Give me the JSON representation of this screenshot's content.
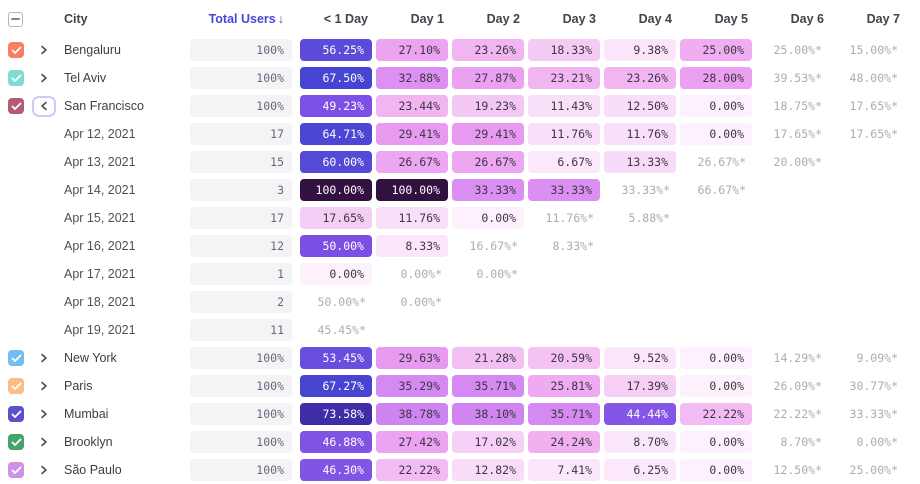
{
  "header": {
    "columns": [
      "City",
      "Total Users",
      "< 1 Day",
      "Day 1",
      "Day 2",
      "Day 3",
      "Day 4",
      "Day 5",
      "Day 6",
      "Day 7"
    ],
    "sort_column": "Total Users",
    "sort_arrow": "↓",
    "select_all_state": "indeterminate"
  },
  "accent_color": "#4c46d6",
  "heat_white_text_min": 44,
  "heat_scale": [
    {
      "value": 0,
      "color": "#fdf1fd"
    },
    {
      "value": 10,
      "color": "#fae4fa"
    },
    {
      "value": 15,
      "color": "#f7d6f7"
    },
    {
      "value": 20,
      "color": "#f4c6f4"
    },
    {
      "value": 25,
      "color": "#f0adf1"
    },
    {
      "value": 30,
      "color": "#e798f1"
    },
    {
      "value": 35,
      "color": "#d68af3"
    },
    {
      "value": 40,
      "color": "#cc82f0"
    },
    {
      "value": 44,
      "color": "#8557e6"
    },
    {
      "value": 50,
      "color": "#7b4fe4"
    },
    {
      "value": 56,
      "color": "#5a4bd9"
    },
    {
      "value": 64,
      "color": "#4f47d6"
    },
    {
      "value": 68,
      "color": "#4543d1"
    },
    {
      "value": 74,
      "color": "#3e2ba4"
    },
    {
      "value": 100,
      "color": "#321040"
    }
  ],
  "rows": [
    {
      "type": "city",
      "label": "Bengaluru",
      "checkbox_color": "#fa7e5f",
      "expanded": false,
      "total": "100%",
      "cells": [
        {
          "text": "56.25%",
          "value": 56.25,
          "partial": false
        },
        {
          "text": "27.10%",
          "value": 27.1,
          "partial": false
        },
        {
          "text": "23.26%",
          "value": 23.26,
          "partial": false
        },
        {
          "text": "18.33%",
          "value": 18.33,
          "partial": false
        },
        {
          "text": "9.38%",
          "value": 9.38,
          "partial": false
        },
        {
          "text": "25.00%",
          "value": 25.0,
          "partial": false
        },
        {
          "text": "25.00%*",
          "value": 25.0,
          "partial": true
        },
        {
          "text": "15.00%*",
          "value": 15.0,
          "partial": true
        }
      ]
    },
    {
      "type": "city",
      "label": "Tel Aviv",
      "checkbox_color": "#7fdcd1",
      "expanded": false,
      "total": "100%",
      "cells": [
        {
          "text": "67.50%",
          "value": 67.5,
          "partial": false
        },
        {
          "text": "32.88%",
          "value": 32.88,
          "partial": false
        },
        {
          "text": "27.87%",
          "value": 27.87,
          "partial": false
        },
        {
          "text": "23.21%",
          "value": 23.21,
          "partial": false
        },
        {
          "text": "23.26%",
          "value": 23.26,
          "partial": false
        },
        {
          "text": "28.00%",
          "value": 28.0,
          "partial": false
        },
        {
          "text": "39.53%*",
          "value": 39.53,
          "partial": true
        },
        {
          "text": "48.00%*",
          "value": 48.0,
          "partial": true
        }
      ]
    },
    {
      "type": "city",
      "label": "San Francisco",
      "checkbox_color": "#b25c74",
      "expanded": true,
      "total": "100%",
      "cells": [
        {
          "text": "49.23%",
          "value": 49.23,
          "partial": false
        },
        {
          "text": "23.44%",
          "value": 23.44,
          "partial": false
        },
        {
          "text": "19.23%",
          "value": 19.23,
          "partial": false
        },
        {
          "text": "11.43%",
          "value": 11.43,
          "partial": false
        },
        {
          "text": "12.50%",
          "value": 12.5,
          "partial": false
        },
        {
          "text": "0.00%",
          "value": 0.0,
          "partial": false
        },
        {
          "text": "18.75%*",
          "value": 18.75,
          "partial": true
        },
        {
          "text": "17.65%*",
          "value": 17.65,
          "partial": true
        }
      ]
    },
    {
      "type": "date",
      "label": "Apr 12, 2021",
      "total": "17",
      "cells": [
        {
          "text": "64.71%",
          "value": 64.71,
          "partial": false
        },
        {
          "text": "29.41%",
          "value": 29.41,
          "partial": false
        },
        {
          "text": "29.41%",
          "value": 29.41,
          "partial": false
        },
        {
          "text": "11.76%",
          "value": 11.76,
          "partial": false
        },
        {
          "text": "11.76%",
          "value": 11.76,
          "partial": false
        },
        {
          "text": "0.00%",
          "value": 0.0,
          "partial": false
        },
        {
          "text": "17.65%*",
          "value": 17.65,
          "partial": true
        },
        {
          "text": "17.65%*",
          "value": 17.65,
          "partial": true
        }
      ]
    },
    {
      "type": "date",
      "label": "Apr 13, 2021",
      "total": "15",
      "cells": [
        {
          "text": "60.00%",
          "value": 60.0,
          "partial": false
        },
        {
          "text": "26.67%",
          "value": 26.67,
          "partial": false
        },
        {
          "text": "26.67%",
          "value": 26.67,
          "partial": false
        },
        {
          "text": "6.67%",
          "value": 6.67,
          "partial": false
        },
        {
          "text": "13.33%",
          "value": 13.33,
          "partial": false
        },
        {
          "text": "26.67%*",
          "value": 26.67,
          "partial": true
        },
        {
          "text": "20.00%*",
          "value": 20.0,
          "partial": true
        },
        null
      ]
    },
    {
      "type": "date",
      "label": "Apr 14, 2021",
      "total": "3",
      "cells": [
        {
          "text": "100.00%",
          "value": 100.0,
          "partial": false
        },
        {
          "text": "100.00%",
          "value": 100.0,
          "partial": false
        },
        {
          "text": "33.33%",
          "value": 33.33,
          "partial": false
        },
        {
          "text": "33.33%",
          "value": 33.33,
          "partial": false
        },
        {
          "text": "33.33%*",
          "value": 33.33,
          "partial": true
        },
        {
          "text": "66.67%*",
          "value": 66.67,
          "partial": true
        },
        null,
        null
      ]
    },
    {
      "type": "date",
      "label": "Apr 15, 2021",
      "total": "17",
      "cells": [
        {
          "text": "17.65%",
          "value": 17.65,
          "partial": false
        },
        {
          "text": "11.76%",
          "value": 11.76,
          "partial": false
        },
        {
          "text": "0.00%",
          "value": 0.0,
          "partial": false
        },
        {
          "text": "11.76%*",
          "value": 11.76,
          "partial": true
        },
        {
          "text": "5.88%*",
          "value": 5.88,
          "partial": true
        },
        null,
        null,
        null
      ]
    },
    {
      "type": "date",
      "label": "Apr 16, 2021",
      "total": "12",
      "cells": [
        {
          "text": "50.00%",
          "value": 50.0,
          "partial": false
        },
        {
          "text": "8.33%",
          "value": 8.33,
          "partial": false
        },
        {
          "text": "16.67%*",
          "value": 16.67,
          "partial": true
        },
        {
          "text": "8.33%*",
          "value": 8.33,
          "partial": true
        },
        null,
        null,
        null,
        null
      ]
    },
    {
      "type": "date",
      "label": "Apr 17, 2021",
      "total": "1",
      "cells": [
        {
          "text": "0.00%",
          "value": 0.0,
          "partial": false
        },
        {
          "text": "0.00%*",
          "value": 0.0,
          "partial": true
        },
        {
          "text": "0.00%*",
          "value": 0.0,
          "partial": true
        },
        null,
        null,
        null,
        null,
        null
      ]
    },
    {
      "type": "date",
      "label": "Apr 18, 2021",
      "total": "2",
      "cells": [
        {
          "text": "50.00%*",
          "value": 50.0,
          "partial": true
        },
        {
          "text": "0.00%*",
          "value": 0.0,
          "partial": true
        },
        null,
        null,
        null,
        null,
        null,
        null
      ]
    },
    {
      "type": "date",
      "label": "Apr 19, 2021",
      "total": "11",
      "cells": [
        {
          "text": "45.45%*",
          "value": 45.45,
          "partial": true
        },
        null,
        null,
        null,
        null,
        null,
        null,
        null
      ]
    },
    {
      "type": "city",
      "label": "New York",
      "checkbox_color": "#72bdf2",
      "expanded": false,
      "total": "100%",
      "cells": [
        {
          "text": "53.45%",
          "value": 53.45,
          "partial": false
        },
        {
          "text": "29.63%",
          "value": 29.63,
          "partial": false
        },
        {
          "text": "21.28%",
          "value": 21.28,
          "partial": false
        },
        {
          "text": "20.59%",
          "value": 20.59,
          "partial": false
        },
        {
          "text": "9.52%",
          "value": 9.52,
          "partial": false
        },
        {
          "text": "0.00%",
          "value": 0.0,
          "partial": false
        },
        {
          "text": "14.29%*",
          "value": 14.29,
          "partial": true
        },
        {
          "text": "9.09%*",
          "value": 9.09,
          "partial": true
        }
      ]
    },
    {
      "type": "city",
      "label": "Paris",
      "checkbox_color": "#fcbc87",
      "expanded": false,
      "total": "100%",
      "cells": [
        {
          "text": "67.27%",
          "value": 67.27,
          "partial": false
        },
        {
          "text": "35.29%",
          "value": 35.29,
          "partial": false
        },
        {
          "text": "35.71%",
          "value": 35.71,
          "partial": false
        },
        {
          "text": "25.81%",
          "value": 25.81,
          "partial": false
        },
        {
          "text": "17.39%",
          "value": 17.39,
          "partial": false
        },
        {
          "text": "0.00%",
          "value": 0.0,
          "partial": false
        },
        {
          "text": "26.09%*",
          "value": 26.09,
          "partial": true
        },
        {
          "text": "30.77%*",
          "value": 30.77,
          "partial": true
        }
      ]
    },
    {
      "type": "city",
      "label": "Mumbai",
      "checkbox_color": "#5a50cc",
      "expanded": false,
      "total": "100%",
      "cells": [
        {
          "text": "73.58%",
          "value": 73.58,
          "partial": false
        },
        {
          "text": "38.78%",
          "value": 38.78,
          "partial": false
        },
        {
          "text": "38.10%",
          "value": 38.1,
          "partial": false
        },
        {
          "text": "35.71%",
          "value": 35.71,
          "partial": false
        },
        {
          "text": "44.44%",
          "value": 44.44,
          "partial": false
        },
        {
          "text": "22.22%",
          "value": 22.22,
          "partial": false
        },
        {
          "text": "22.22%*",
          "value": 22.22,
          "partial": true
        },
        {
          "text": "33.33%*",
          "value": 33.33,
          "partial": true
        }
      ]
    },
    {
      "type": "city",
      "label": "Brooklyn",
      "checkbox_color": "#43a56c",
      "expanded": false,
      "total": "100%",
      "cells": [
        {
          "text": "46.88%",
          "value": 46.88,
          "partial": false
        },
        {
          "text": "27.42%",
          "value": 27.42,
          "partial": false
        },
        {
          "text": "17.02%",
          "value": 17.02,
          "partial": false
        },
        {
          "text": "24.24%",
          "value": 24.24,
          "partial": false
        },
        {
          "text": "8.70%",
          "value": 8.7,
          "partial": false
        },
        {
          "text": "0.00%",
          "value": 0.0,
          "partial": false
        },
        {
          "text": "8.70%*",
          "value": 8.7,
          "partial": true
        },
        {
          "text": "0.00%*",
          "value": 0.0,
          "partial": true
        }
      ]
    },
    {
      "type": "city",
      "label": "São Paulo",
      "checkbox_color": "#cf90e8",
      "expanded": false,
      "total": "100%",
      "cells": [
        {
          "text": "46.30%",
          "value": 46.3,
          "partial": false
        },
        {
          "text": "22.22%",
          "value": 22.22,
          "partial": false
        },
        {
          "text": "12.82%",
          "value": 12.82,
          "partial": false
        },
        {
          "text": "7.41%",
          "value": 7.41,
          "partial": false
        },
        {
          "text": "6.25%",
          "value": 6.25,
          "partial": false
        },
        {
          "text": "0.00%",
          "value": 0.0,
          "partial": false
        },
        {
          "text": "12.50%*",
          "value": 12.5,
          "partial": true
        },
        {
          "text": "25.00%*",
          "value": 25.0,
          "partial": true
        }
      ]
    }
  ]
}
